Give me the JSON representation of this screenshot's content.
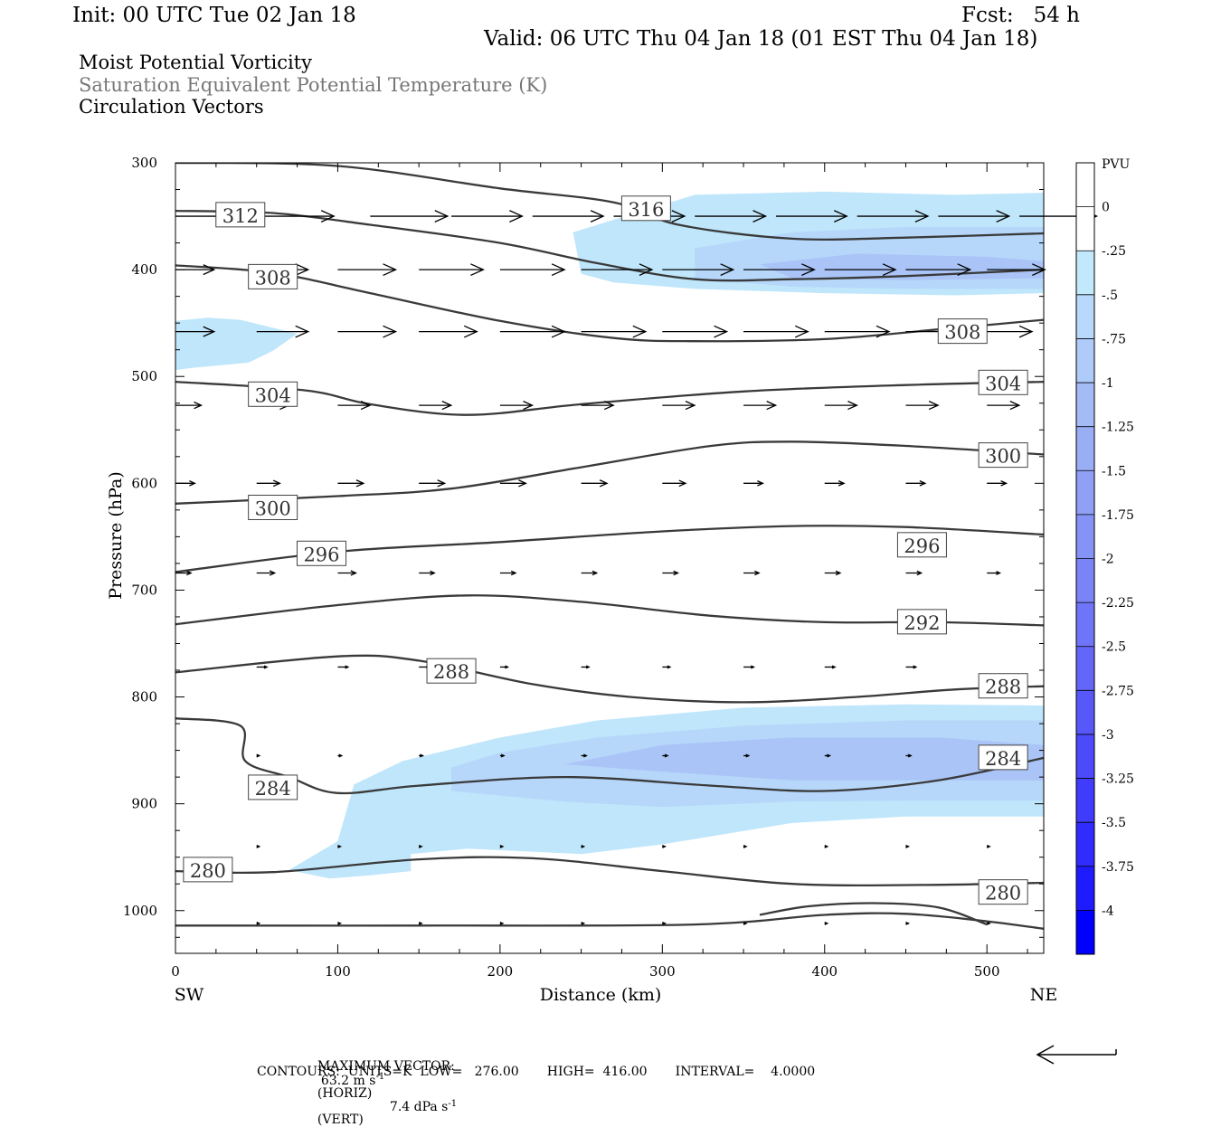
{
  "header": {
    "init": "Init: 00 UTC Tue 02 Jan 18",
    "fcst": "Fcst:   54 h",
    "valid": "Valid: 06 UTC Thu 04 Jan 18 (01 EST Thu 04 Jan 18)"
  },
  "fields": {
    "line1": "Moist Potential Vorticity",
    "line2": "Saturation Equivalent Potential Temperature (K)",
    "line3": "Circulation Vectors"
  },
  "footer": {
    "max_vector_label": "MAXIMUM VECTOR:",
    "max_vector_horiz_value": "63.2 m s",
    "max_vector_horiz_unit": "(HORIZ)",
    "max_vector_vert_value": "7.4 dPa s",
    "max_vector_vert_unit": "(VERT)",
    "exponent": "-1",
    "contours_line": "CONTOURS:  UNITS=K  LOW=   276.00       HIGH=  416.00       INTERVAL=    4.0000"
  },
  "colors": {
    "contour": "#3a3a3a",
    "fill_025": "#bfe6fb",
    "fill_05": "#b6d7fa",
    "fill_075": "#aac4f7",
    "fill_1": "#9db2f5",
    "colorbar_bottom": "#0000ff"
  },
  "chart_data": {
    "type": "cross-section",
    "xlabel": "Distance (km)",
    "ylabel": "Pressure (hPa)",
    "x_ticks": [
      0,
      100,
      200,
      300,
      400,
      500
    ],
    "y_ticks": [
      300,
      400,
      500,
      600,
      700,
      800,
      900,
      1000
    ],
    "xlim": [
      0,
      535
    ],
    "ylim": [
      300,
      1040
    ],
    "x_end_labels": {
      "left": "SW",
      "right": "NE"
    },
    "colorbar": {
      "unit": "PVU",
      "labels": [
        "0",
        "-.25",
        "-.5",
        "-.75",
        "-1",
        "-1.25",
        "-1.5",
        "-1.75",
        "-2",
        "-2.25",
        "-2.5",
        "-2.75",
        "-3",
        "-3.25",
        "-3.5",
        "-3.75",
        "-4"
      ],
      "colors": [
        "#ffffff",
        "#c2e8fc",
        "#b8d9fb",
        "#afcbf9",
        "#a4bbf7",
        "#9aaef6",
        "#8fa0f6",
        "#8592f6",
        "#7a84f7",
        "#6f75f8",
        "#6466f9",
        "#5858fa",
        "#4c4afb",
        "#3f3cfc",
        "#302cfd",
        "#1e1cfe",
        "#0000ff"
      ]
    },
    "theta_e_contours": [
      {
        "label": "316",
        "points": [
          [
            0,
            300
          ],
          [
            100,
            303
          ],
          [
            200,
            324
          ],
          [
            270,
            337
          ],
          [
            310,
            358
          ],
          [
            380,
            371
          ],
          [
            450,
            370
          ],
          [
            535,
            366
          ]
        ]
      },
      {
        "label": "312",
        "points": [
          [
            0,
            345
          ],
          [
            60,
            347
          ],
          [
            120,
            358
          ],
          [
            200,
            375
          ],
          [
            260,
            394
          ],
          [
            320,
            409
          ],
          [
            380,
            409
          ],
          [
            450,
            406
          ],
          [
            535,
            400
          ]
        ]
      },
      {
        "label": "308",
        "points": [
          [
            0,
            396
          ],
          [
            60,
            403
          ],
          [
            120,
            422
          ],
          [
            200,
            448
          ],
          [
            270,
            464
          ],
          [
            320,
            467
          ],
          [
            400,
            465
          ],
          [
            470,
            456
          ],
          [
            535,
            447
          ]
        ]
      },
      {
        "label": "304",
        "points": [
          [
            0,
            505
          ],
          [
            80,
            513
          ],
          [
            120,
            526
          ],
          [
            180,
            536
          ],
          [
            250,
            526
          ],
          [
            350,
            514
          ],
          [
            450,
            508
          ],
          [
            535,
            505
          ]
        ]
      },
      {
        "label": "300",
        "points": [
          [
            0,
            619
          ],
          [
            100,
            612
          ],
          [
            170,
            605
          ],
          [
            250,
            585
          ],
          [
            330,
            565
          ],
          [
            380,
            561
          ],
          [
            450,
            565
          ],
          [
            535,
            573
          ]
        ]
      },
      {
        "label": "296",
        "points": [
          [
            0,
            683
          ],
          [
            100,
            664
          ],
          [
            200,
            655
          ],
          [
            300,
            645
          ],
          [
            380,
            640
          ],
          [
            450,
            641
          ],
          [
            535,
            648
          ]
        ]
      },
      {
        "label": "292",
        "points": [
          [
            0,
            732
          ],
          [
            100,
            714
          ],
          [
            180,
            705
          ],
          [
            250,
            711
          ],
          [
            330,
            724
          ],
          [
            400,
            730
          ],
          [
            470,
            730
          ],
          [
            535,
            733
          ]
        ]
      },
      {
        "label": "288",
        "points": [
          [
            0,
            777
          ],
          [
            100,
            762
          ],
          [
            150,
            766
          ],
          [
            220,
            788
          ],
          [
            280,
            800
          ],
          [
            350,
            805
          ],
          [
            420,
            800
          ],
          [
            480,
            793
          ],
          [
            535,
            790
          ]
        ]
      },
      {
        "label": "284",
        "points": [
          [
            0,
            820
          ],
          [
            40,
            827
          ],
          [
            43,
            860
          ],
          [
            70,
            875
          ],
          [
            100,
            890
          ],
          [
            150,
            883
          ],
          [
            240,
            875
          ],
          [
            330,
            883
          ],
          [
            400,
            888
          ],
          [
            470,
            878
          ],
          [
            535,
            857
          ]
        ]
      },
      {
        "label": "280",
        "points": [
          [
            0,
            963
          ],
          [
            60,
            964
          ],
          [
            150,
            952
          ],
          [
            220,
            951
          ],
          [
            300,
            963
          ],
          [
            380,
            975
          ],
          [
            460,
            976
          ],
          [
            535,
            974
          ]
        ]
      },
      {
        "label": "",
        "points": [
          [
            0,
            1014
          ],
          [
            150,
            1014
          ],
          [
            320,
            1013
          ],
          [
            400,
            1004
          ],
          [
            450,
            1003
          ],
          [
            500,
            1010
          ],
          [
            535,
            1017
          ]
        ]
      },
      {
        "label": "",
        "points": [
          [
            360,
            1004
          ],
          [
            390,
            996
          ],
          [
            430,
            993
          ],
          [
            470,
            997
          ],
          [
            500,
            1013
          ]
        ]
      }
    ],
    "pv_regions": [
      {
        "pvu": "-.25",
        "points": [
          [
            0,
            448
          ],
          [
            20,
            445
          ],
          [
            40,
            447
          ],
          [
            75,
            460
          ],
          [
            60,
            476
          ],
          [
            45,
            487
          ],
          [
            10,
            492
          ],
          [
            0,
            494
          ]
        ]
      },
      {
        "pvu": "-.25",
        "points": [
          [
            245,
            365
          ],
          [
            320,
            330
          ],
          [
            400,
            327
          ],
          [
            480,
            330
          ],
          [
            535,
            328
          ],
          [
            535,
            422
          ],
          [
            480,
            424
          ],
          [
            400,
            422
          ],
          [
            320,
            418
          ],
          [
            270,
            412
          ],
          [
            250,
            404
          ]
        ]
      },
      {
        "pvu": "-.5",
        "points": [
          [
            320,
            380
          ],
          [
            380,
            365
          ],
          [
            450,
            360
          ],
          [
            535,
            360
          ],
          [
            535,
            418
          ],
          [
            450,
            418
          ],
          [
            380,
            416
          ],
          [
            320,
            408
          ]
        ]
      },
      {
        "pvu": "-.75",
        "points": [
          [
            360,
            395
          ],
          [
            420,
            385
          ],
          [
            500,
            388
          ],
          [
            535,
            392
          ],
          [
            535,
            408
          ],
          [
            450,
            410
          ],
          [
            380,
            408
          ]
        ]
      },
      {
        "pvu": "-.25",
        "points": [
          [
            70,
            962
          ],
          [
            100,
            935
          ],
          [
            110,
            882
          ],
          [
            140,
            860
          ],
          [
            200,
            838
          ],
          [
            260,
            822
          ],
          [
            350,
            810
          ],
          [
            450,
            807
          ],
          [
            535,
            808
          ],
          [
            535,
            912
          ],
          [
            450,
            912
          ],
          [
            380,
            918
          ],
          [
            300,
            938
          ],
          [
            250,
            947
          ],
          [
            180,
            942
          ],
          [
            145,
            947
          ],
          [
            145,
            963
          ],
          [
            120,
            967
          ],
          [
            95,
            970
          ]
        ]
      },
      {
        "pvu": "-.5",
        "points": [
          [
            170,
            866
          ],
          [
            200,
            852
          ],
          [
            260,
            838
          ],
          [
            350,
            827
          ],
          [
            450,
            822
          ],
          [
            535,
            822
          ],
          [
            535,
            897
          ],
          [
            450,
            897
          ],
          [
            380,
            898
          ],
          [
            300,
            903
          ],
          [
            240,
            898
          ],
          [
            170,
            888
          ]
        ]
      },
      {
        "pvu": "-.75",
        "points": [
          [
            240,
            863
          ],
          [
            300,
            845
          ],
          [
            380,
            838
          ],
          [
            470,
            838
          ],
          [
            535,
            845
          ],
          [
            535,
            878
          ],
          [
            470,
            878
          ],
          [
            380,
            878
          ],
          [
            300,
            870
          ]
        ]
      }
    ],
    "vector_rows": [
      {
        "p": 350,
        "x": [
          0,
          50,
          120,
          170,
          220,
          270,
          320,
          370,
          420,
          470,
          520
        ],
        "u": [
          60,
          60,
          60,
          55,
          55,
          55,
          55,
          55,
          55,
          55,
          60
        ],
        "w": [
          0,
          0,
          0,
          0,
          0,
          0,
          0,
          0,
          0,
          0,
          0
        ]
      },
      {
        "p": 400,
        "x": [
          0,
          50,
          100,
          150,
          200,
          250,
          300,
          350,
          400,
          450,
          500
        ],
        "u": [
          30,
          40,
          45,
          50,
          50,
          55,
          55,
          55,
          55,
          50,
          45
        ],
        "w": [
          0,
          0,
          0,
          0,
          0,
          0,
          0,
          0,
          0,
          0,
          0
        ]
      },
      {
        "p": 458,
        "x": [
          0,
          50,
          100,
          150,
          200,
          250,
          300,
          350,
          400,
          450,
          500
        ],
        "u": [
          30,
          40,
          45,
          45,
          50,
          50,
          50,
          50,
          50,
          45,
          35
        ],
        "w": [
          0,
          0,
          0,
          0,
          0,
          0,
          0,
          0,
          0,
          0,
          0
        ]
      },
      {
        "p": 527,
        "x": [
          0,
          50,
          100,
          150,
          200,
          250,
          300,
          350,
          400,
          450,
          500
        ],
        "u": [
          20,
          25,
          25,
          25,
          25,
          25,
          25,
          25,
          25,
          25,
          25
        ],
        "w": [
          0,
          0,
          0,
          0,
          0,
          0,
          0,
          0,
          0,
          0,
          0
        ]
      },
      {
        "p": 600,
        "x": [
          0,
          50,
          100,
          150,
          200,
          250,
          300,
          350,
          400,
          450,
          500
        ],
        "u": [
          15,
          18,
          20,
          20,
          20,
          20,
          18,
          15,
          15,
          15,
          15
        ],
        "w": [
          0,
          0,
          0,
          0,
          0,
          0,
          0,
          0,
          0,
          0,
          0
        ]
      },
      {
        "p": 684,
        "x": [
          0,
          50,
          100,
          150,
          200,
          250,
          300,
          350,
          400,
          450,
          500
        ],
        "u": [
          12,
          14,
          14,
          12,
          12,
          12,
          12,
          12,
          12,
          12,
          10
        ],
        "w": [
          0,
          0,
          0,
          0,
          0,
          0,
          0,
          0,
          0,
          0,
          0
        ]
      },
      {
        "p": 772,
        "x": [
          50,
          100,
          150,
          200,
          250,
          300,
          350,
          400,
          450
        ],
        "u": [
          8,
          8,
          8,
          6,
          6,
          6,
          8,
          8,
          8
        ],
        "w": [
          0,
          0,
          0,
          0,
          0,
          0,
          0,
          0,
          0
        ]
      },
      {
        "p": 855,
        "x": [
          50,
          100,
          150,
          200,
          250,
          300,
          350,
          400,
          450
        ],
        "u": [
          2,
          3,
          3,
          3,
          4,
          4,
          4,
          4,
          4
        ],
        "w": [
          0,
          0,
          0,
          0,
          0,
          0,
          0,
          0,
          0
        ]
      },
      {
        "p": 940,
        "x": [
          50,
          100,
          150,
          200,
          250,
          300,
          350,
          400,
          450,
          500
        ],
        "u": [
          2,
          2,
          2,
          2,
          2,
          2,
          2,
          2,
          2,
          2
        ],
        "w": [
          0,
          0,
          0,
          0,
          0,
          0,
          0,
          0,
          0,
          0
        ]
      },
      {
        "p": 1012,
        "x": [
          50,
          100,
          150,
          200,
          250,
          300,
          350,
          400,
          450,
          500
        ],
        "u": [
          2,
          2,
          2,
          2,
          2,
          2,
          2,
          2,
          2,
          2
        ],
        "w": [
          0,
          0,
          0,
          0,
          0,
          0,
          0,
          0,
          0,
          0
        ]
      }
    ]
  }
}
